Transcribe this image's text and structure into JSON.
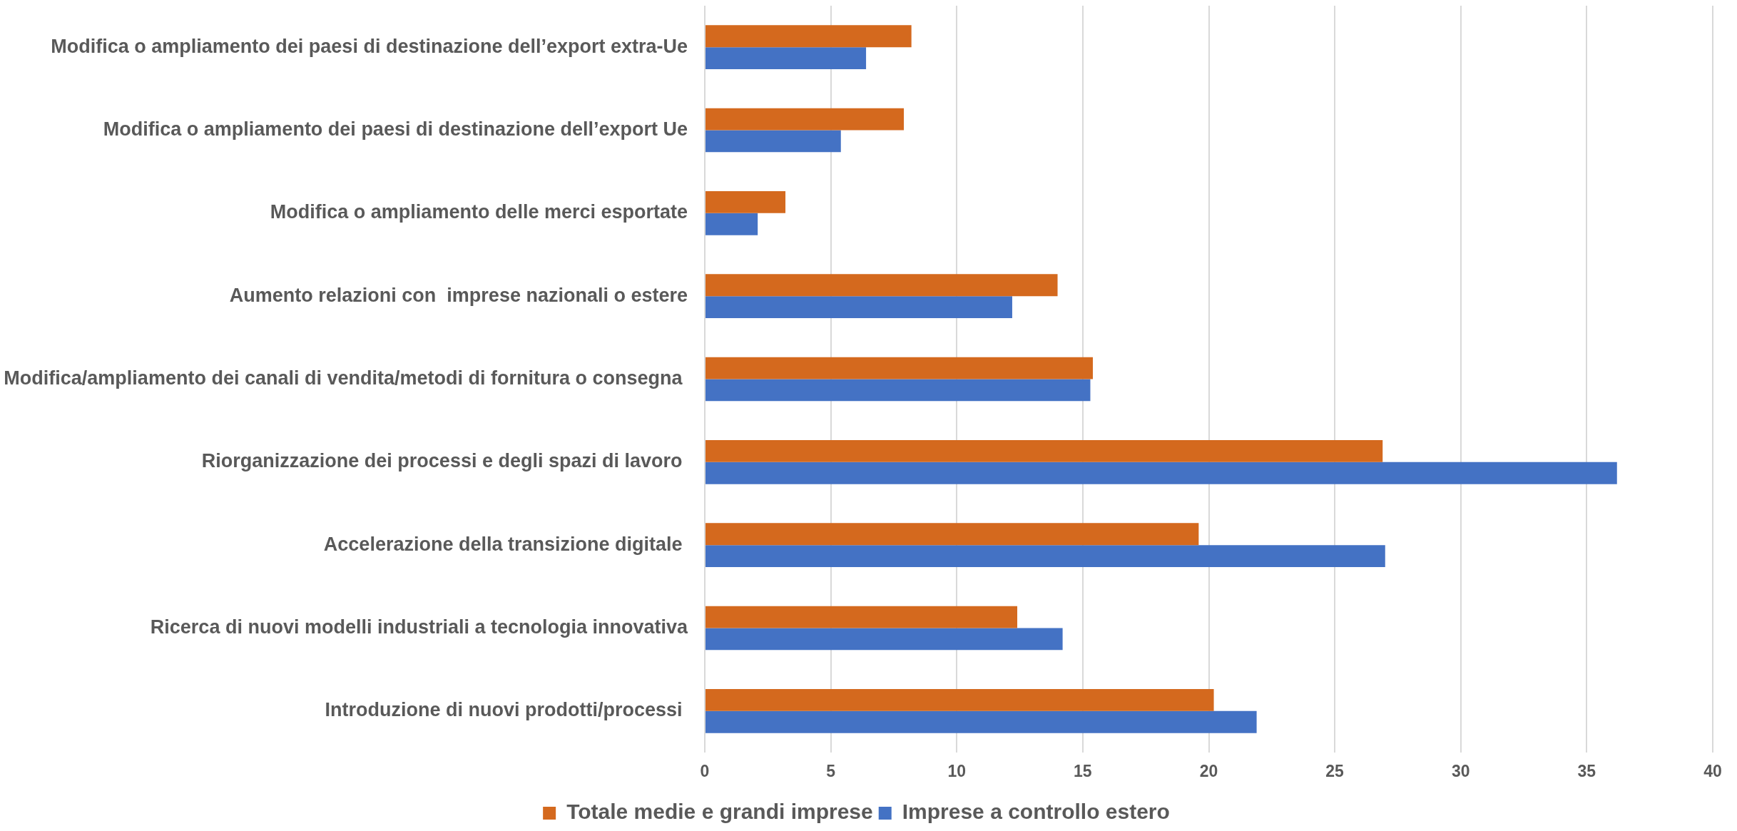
{
  "chart_data": {
    "type": "bar",
    "orientation": "horizontal",
    "categories": [
      "Modifica o ampliamento dei paesi di destinazione dell’export extra-Ue",
      "Modifica o ampliamento dei paesi di destinazione dell’export Ue",
      "Modifica o ampliamento delle merci esportate",
      "Aumento relazioni con  imprese nazionali o estere",
      "Modifica/ampliamento dei canali di vendita/metodi di fornitura o consegna ",
      "Riorganizzazione dei processi e degli spazi di lavoro ",
      "Accelerazione della transizione digitale ",
      "Ricerca di nuovi modelli industriali a tecnologia innovativa",
      "Introduzione di nuovi prodotti/processi "
    ],
    "series": [
      {
        "name": "Totale medie e grandi imprese",
        "color": "#d4691e",
        "values": [
          8.2,
          7.9,
          3.2,
          14.0,
          15.4,
          26.9,
          19.6,
          12.4,
          20.2
        ]
      },
      {
        "name": "Imprese a controllo estero",
        "color": "#4472c4",
        "values": [
          6.4,
          5.4,
          2.1,
          12.2,
          15.3,
          36.2,
          27.0,
          14.2,
          21.9
        ]
      }
    ],
    "xlim": [
      0,
      40
    ],
    "xticks": [
      0,
      5,
      10,
      15,
      20,
      25,
      30,
      35,
      40
    ],
    "grid": "x",
    "legend": "bottom"
  }
}
